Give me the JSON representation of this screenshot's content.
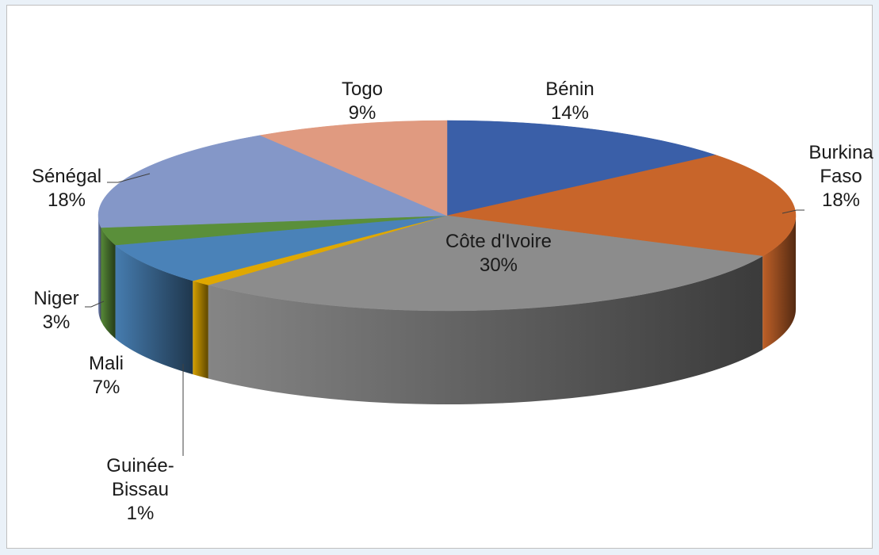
{
  "chart_data": {
    "type": "pie",
    "style": "3d",
    "title": "",
    "slices": [
      {
        "label": "Bénin",
        "label_lines": [
          "Bénin"
        ],
        "value": 14,
        "value_label": "14%",
        "color": "#3a5fa8"
      },
      {
        "label": "Burkina Faso",
        "label_lines": [
          "Burkina",
          "Faso"
        ],
        "value": 18,
        "value_label": "18%",
        "color": "#c8652a"
      },
      {
        "label": "Côte d'Ivoire",
        "label_lines": [
          "Côte d'Ivoire"
        ],
        "value": 30,
        "value_label": "30%",
        "color": "#8c8c8c"
      },
      {
        "label": "Guinée-Bissau",
        "label_lines": [
          "Guinée-",
          "Bissau"
        ],
        "value": 1,
        "value_label": "1%",
        "color": "#e0a800"
      },
      {
        "label": "Mali",
        "label_lines": [
          "Mali"
        ],
        "value": 7,
        "value_label": "7%",
        "color": "#4a82b8"
      },
      {
        "label": "Niger",
        "label_lines": [
          "Niger"
        ],
        "value": 3,
        "value_label": "3%",
        "color": "#5a8f3a"
      },
      {
        "label": "Sénégal",
        "label_lines": [
          "Sénégal"
        ],
        "value": 18,
        "value_label": "18%",
        "color": "#8497c8"
      },
      {
        "label": "Togo",
        "label_lines": [
          "Togo"
        ],
        "value": 9,
        "value_label": "9%",
        "color": "#e09a80"
      }
    ]
  }
}
